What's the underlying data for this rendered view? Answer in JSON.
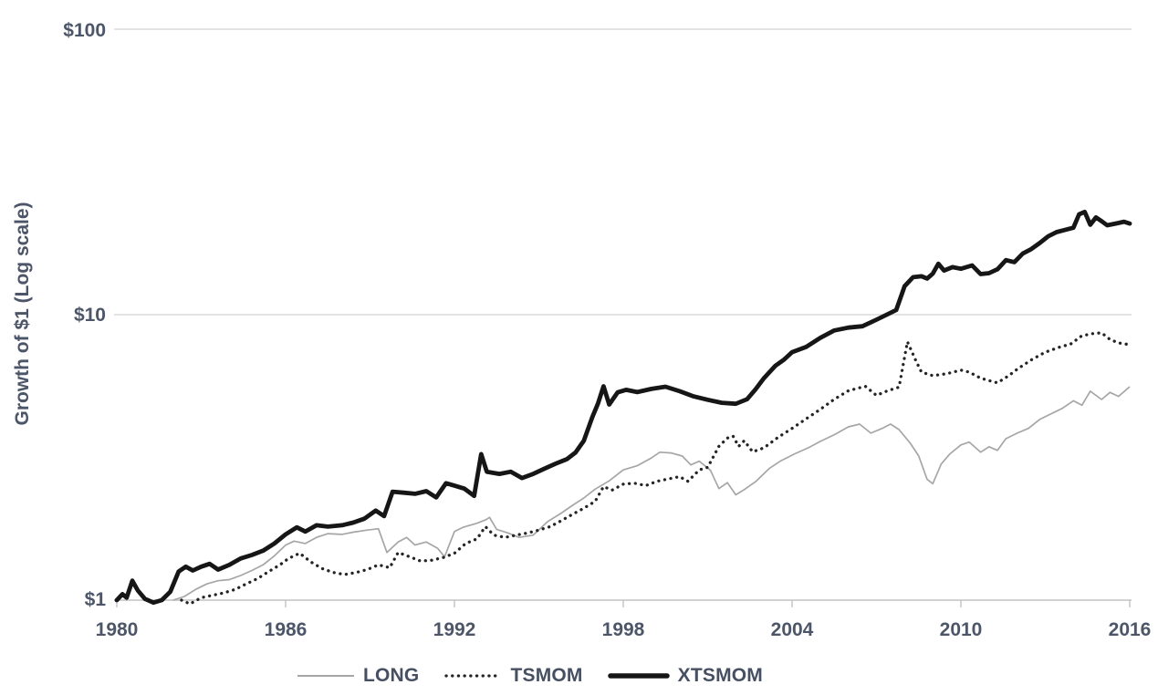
{
  "chart_data": {
    "type": "line",
    "title": "",
    "xlabel": "",
    "ylabel": "Growth of $1 (Log scale)",
    "x_axis": {
      "min": 1980,
      "max": 2016,
      "ticks": [
        1980,
        1986,
        1992,
        1998,
        2004,
        2010,
        2016
      ],
      "tick_labels": [
        "1980",
        "1986",
        "1992",
        "1998",
        "2004",
        "2010",
        "2016"
      ]
    },
    "y_axis": {
      "scale": "log10",
      "min": 1,
      "max": 100,
      "ticks": [
        1,
        10,
        100
      ],
      "tick_labels": [
        "$1",
        "$10",
        "$100"
      ]
    },
    "grid": {
      "horizontal": true,
      "vertical": false,
      "color": "#dadada"
    },
    "axis_color": "#c2c2c2",
    "text_color": "#4d5668",
    "legend": {
      "position": "bottom"
    },
    "series": [
      {
        "name": "LONG",
        "line": "thin",
        "color": "#a6a6a6",
        "points": [
          [
            1982.0,
            1.0
          ],
          [
            1982.4,
            1.03
          ],
          [
            1982.8,
            1.09
          ],
          [
            1983.2,
            1.14
          ],
          [
            1983.6,
            1.17
          ],
          [
            1984.0,
            1.18
          ],
          [
            1984.4,
            1.22
          ],
          [
            1984.8,
            1.27
          ],
          [
            1985.2,
            1.33
          ],
          [
            1985.6,
            1.43
          ],
          [
            1986.0,
            1.56
          ],
          [
            1986.3,
            1.61
          ],
          [
            1986.7,
            1.58
          ],
          [
            1987.1,
            1.66
          ],
          [
            1987.5,
            1.71
          ],
          [
            1988.0,
            1.7
          ],
          [
            1988.4,
            1.73
          ],
          [
            1988.9,
            1.76
          ],
          [
            1989.3,
            1.78
          ],
          [
            1989.6,
            1.47
          ],
          [
            1990.0,
            1.6
          ],
          [
            1990.3,
            1.66
          ],
          [
            1990.6,
            1.56
          ],
          [
            1991.0,
            1.6
          ],
          [
            1991.4,
            1.52
          ],
          [
            1991.65,
            1.42
          ],
          [
            1992.0,
            1.74
          ],
          [
            1992.3,
            1.8
          ],
          [
            1992.8,
            1.86
          ],
          [
            1993.1,
            1.91
          ],
          [
            1993.25,
            1.95
          ],
          [
            1993.5,
            1.77
          ],
          [
            1993.9,
            1.72
          ],
          [
            1994.3,
            1.66
          ],
          [
            1994.8,
            1.69
          ],
          [
            1995.3,
            1.88
          ],
          [
            1995.8,
            2.02
          ],
          [
            1996.2,
            2.15
          ],
          [
            1996.6,
            2.28
          ],
          [
            1997.0,
            2.45
          ],
          [
            1997.5,
            2.62
          ],
          [
            1998.0,
            2.86
          ],
          [
            1998.5,
            2.96
          ],
          [
            1999.0,
            3.15
          ],
          [
            1999.3,
            3.3
          ],
          [
            1999.7,
            3.28
          ],
          [
            2000.1,
            3.2
          ],
          [
            2000.4,
            2.98
          ],
          [
            2000.7,
            3.07
          ],
          [
            2001.1,
            2.85
          ],
          [
            2001.4,
            2.46
          ],
          [
            2001.7,
            2.58
          ],
          [
            2002.0,
            2.34
          ],
          [
            2002.3,
            2.44
          ],
          [
            2002.7,
            2.6
          ],
          [
            2003.2,
            2.9
          ],
          [
            2003.6,
            3.08
          ],
          [
            2004.1,
            3.26
          ],
          [
            2004.6,
            3.43
          ],
          [
            2005.0,
            3.6
          ],
          [
            2005.5,
            3.8
          ],
          [
            2006.0,
            4.05
          ],
          [
            2006.4,
            4.14
          ],
          [
            2006.8,
            3.85
          ],
          [
            2007.2,
            4.0
          ],
          [
            2007.5,
            4.14
          ],
          [
            2007.8,
            3.96
          ],
          [
            2008.2,
            3.55
          ],
          [
            2008.5,
            3.2
          ],
          [
            2008.8,
            2.65
          ],
          [
            2009.0,
            2.56
          ],
          [
            2009.3,
            3.0
          ],
          [
            2009.6,
            3.25
          ],
          [
            2010.0,
            3.5
          ],
          [
            2010.3,
            3.58
          ],
          [
            2010.7,
            3.3
          ],
          [
            2011.0,
            3.45
          ],
          [
            2011.3,
            3.35
          ],
          [
            2011.6,
            3.68
          ],
          [
            2012.0,
            3.85
          ],
          [
            2012.4,
            4.0
          ],
          [
            2012.8,
            4.3
          ],
          [
            2013.2,
            4.5
          ],
          [
            2013.6,
            4.7
          ],
          [
            2014.0,
            5.0
          ],
          [
            2014.3,
            4.82
          ],
          [
            2014.6,
            5.4
          ],
          [
            2015.0,
            5.05
          ],
          [
            2015.3,
            5.35
          ],
          [
            2015.6,
            5.18
          ],
          [
            2016.0,
            5.6
          ]
        ]
      },
      {
        "name": "TSMOM",
        "line": "dotted",
        "color": "#242424",
        "points": [
          [
            1982.3,
            1.0
          ],
          [
            1982.6,
            0.97
          ],
          [
            1983.0,
            1.02
          ],
          [
            1983.4,
            1.04
          ],
          [
            1983.8,
            1.06
          ],
          [
            1984.2,
            1.09
          ],
          [
            1984.6,
            1.14
          ],
          [
            1985.0,
            1.19
          ],
          [
            1985.4,
            1.26
          ],
          [
            1985.8,
            1.33
          ],
          [
            1986.1,
            1.4
          ],
          [
            1986.5,
            1.46
          ],
          [
            1986.9,
            1.36
          ],
          [
            1987.3,
            1.29
          ],
          [
            1987.7,
            1.25
          ],
          [
            1988.1,
            1.23
          ],
          [
            1988.5,
            1.25
          ],
          [
            1988.9,
            1.28
          ],
          [
            1989.3,
            1.33
          ],
          [
            1989.7,
            1.3
          ],
          [
            1990.0,
            1.47
          ],
          [
            1990.4,
            1.42
          ],
          [
            1990.8,
            1.37
          ],
          [
            1991.2,
            1.38
          ],
          [
            1991.6,
            1.41
          ],
          [
            1992.0,
            1.46
          ],
          [
            1992.4,
            1.58
          ],
          [
            1992.8,
            1.64
          ],
          [
            1993.1,
            1.81
          ],
          [
            1993.4,
            1.69
          ],
          [
            1993.8,
            1.66
          ],
          [
            1994.2,
            1.69
          ],
          [
            1994.6,
            1.72
          ],
          [
            1995.0,
            1.76
          ],
          [
            1995.4,
            1.81
          ],
          [
            1995.8,
            1.9
          ],
          [
            1996.2,
            2.0
          ],
          [
            1996.6,
            2.1
          ],
          [
            1997.0,
            2.22
          ],
          [
            1997.3,
            2.5
          ],
          [
            1997.6,
            2.43
          ],
          [
            1998.0,
            2.55
          ],
          [
            1998.4,
            2.57
          ],
          [
            1998.8,
            2.52
          ],
          [
            1999.2,
            2.61
          ],
          [
            1999.6,
            2.66
          ],
          [
            2000.0,
            2.71
          ],
          [
            2000.3,
            2.61
          ],
          [
            2000.7,
            2.86
          ],
          [
            2001.0,
            2.92
          ],
          [
            2001.4,
            3.46
          ],
          [
            2001.7,
            3.7
          ],
          [
            2001.9,
            3.76
          ],
          [
            2002.1,
            3.46
          ],
          [
            2002.3,
            3.62
          ],
          [
            2002.6,
            3.31
          ],
          [
            2003.0,
            3.42
          ],
          [
            2003.5,
            3.72
          ],
          [
            2004.0,
            4.0
          ],
          [
            2004.5,
            4.32
          ],
          [
            2005.0,
            4.66
          ],
          [
            2005.5,
            5.06
          ],
          [
            2006.0,
            5.42
          ],
          [
            2006.6,
            5.62
          ],
          [
            2007.0,
            5.22
          ],
          [
            2007.4,
            5.42
          ],
          [
            2007.8,
            5.58
          ],
          [
            2008.1,
            8.05
          ],
          [
            2008.4,
            6.9
          ],
          [
            2008.6,
            6.3
          ],
          [
            2009.0,
            6.12
          ],
          [
            2009.5,
            6.22
          ],
          [
            2010.0,
            6.4
          ],
          [
            2010.3,
            6.3
          ],
          [
            2010.7,
            6.0
          ],
          [
            2011.0,
            5.88
          ],
          [
            2011.3,
            5.78
          ],
          [
            2011.7,
            6.12
          ],
          [
            2012.0,
            6.45
          ],
          [
            2012.5,
            6.95
          ],
          [
            2013.0,
            7.4
          ],
          [
            2013.5,
            7.7
          ],
          [
            2013.9,
            7.9
          ],
          [
            2014.3,
            8.45
          ],
          [
            2014.7,
            8.6
          ],
          [
            2015.0,
            8.65
          ],
          [
            2015.3,
            8.2
          ],
          [
            2015.6,
            7.97
          ],
          [
            2016.0,
            7.86
          ]
        ]
      },
      {
        "name": "XTSMOM",
        "line": "thick",
        "color": "#161616",
        "points": [
          [
            1980.0,
            1.0
          ],
          [
            1980.2,
            1.05
          ],
          [
            1980.35,
            1.02
          ],
          [
            1980.55,
            1.17
          ],
          [
            1980.75,
            1.08
          ],
          [
            1981.0,
            1.01
          ],
          [
            1981.3,
            0.98
          ],
          [
            1981.6,
            1.0
          ],
          [
            1981.9,
            1.07
          ],
          [
            1982.2,
            1.26
          ],
          [
            1982.45,
            1.31
          ],
          [
            1982.7,
            1.27
          ],
          [
            1983.0,
            1.31
          ],
          [
            1983.3,
            1.34
          ],
          [
            1983.6,
            1.28
          ],
          [
            1984.0,
            1.33
          ],
          [
            1984.4,
            1.4
          ],
          [
            1984.8,
            1.44
          ],
          [
            1985.2,
            1.49
          ],
          [
            1985.6,
            1.58
          ],
          [
            1986.0,
            1.7
          ],
          [
            1986.4,
            1.8
          ],
          [
            1986.7,
            1.74
          ],
          [
            1987.1,
            1.83
          ],
          [
            1987.5,
            1.81
          ],
          [
            1988.0,
            1.83
          ],
          [
            1988.4,
            1.87
          ],
          [
            1988.8,
            1.93
          ],
          [
            1989.2,
            2.06
          ],
          [
            1989.5,
            1.97
          ],
          [
            1989.8,
            2.4
          ],
          [
            1990.2,
            2.38
          ],
          [
            1990.6,
            2.36
          ],
          [
            1991.0,
            2.41
          ],
          [
            1991.35,
            2.29
          ],
          [
            1991.7,
            2.57
          ],
          [
            1992.0,
            2.52
          ],
          [
            1992.35,
            2.46
          ],
          [
            1992.7,
            2.32
          ],
          [
            1992.95,
            3.25
          ],
          [
            1993.15,
            2.82
          ],
          [
            1993.6,
            2.77
          ],
          [
            1994.0,
            2.82
          ],
          [
            1994.4,
            2.68
          ],
          [
            1994.8,
            2.77
          ],
          [
            1995.2,
            2.89
          ],
          [
            1995.6,
            3.01
          ],
          [
            1996.0,
            3.12
          ],
          [
            1996.3,
            3.29
          ],
          [
            1996.6,
            3.62
          ],
          [
            1996.9,
            4.38
          ],
          [
            1997.1,
            4.88
          ],
          [
            1997.3,
            5.62
          ],
          [
            1997.5,
            4.85
          ],
          [
            1997.8,
            5.35
          ],
          [
            1998.1,
            5.46
          ],
          [
            1998.5,
            5.36
          ],
          [
            1999.0,
            5.5
          ],
          [
            1999.5,
            5.6
          ],
          [
            2000.0,
            5.4
          ],
          [
            2000.5,
            5.18
          ],
          [
            2001.0,
            5.04
          ],
          [
            2001.5,
            4.92
          ],
          [
            2002.0,
            4.88
          ],
          [
            2002.4,
            5.06
          ],
          [
            2002.7,
            5.48
          ],
          [
            2003.0,
            6.0
          ],
          [
            2003.4,
            6.62
          ],
          [
            2003.7,
            6.95
          ],
          [
            2004.0,
            7.4
          ],
          [
            2004.5,
            7.72
          ],
          [
            2005.0,
            8.3
          ],
          [
            2005.5,
            8.82
          ],
          [
            2006.0,
            9.02
          ],
          [
            2006.5,
            9.12
          ],
          [
            2007.0,
            9.62
          ],
          [
            2007.4,
            10.05
          ],
          [
            2007.7,
            10.4
          ],
          [
            2008.0,
            12.6
          ],
          [
            2008.3,
            13.55
          ],
          [
            2008.6,
            13.65
          ],
          [
            2008.8,
            13.4
          ],
          [
            2009.0,
            13.95
          ],
          [
            2009.2,
            15.1
          ],
          [
            2009.4,
            14.3
          ],
          [
            2009.7,
            14.7
          ],
          [
            2010.0,
            14.5
          ],
          [
            2010.4,
            14.9
          ],
          [
            2010.7,
            13.9
          ],
          [
            2011.0,
            14.0
          ],
          [
            2011.3,
            14.45
          ],
          [
            2011.6,
            15.55
          ],
          [
            2011.9,
            15.3
          ],
          [
            2012.2,
            16.4
          ],
          [
            2012.5,
            17.0
          ],
          [
            2012.8,
            17.85
          ],
          [
            2013.1,
            18.85
          ],
          [
            2013.4,
            19.5
          ],
          [
            2013.7,
            19.85
          ],
          [
            2014.0,
            20.2
          ],
          [
            2014.2,
            22.5
          ],
          [
            2014.4,
            22.95
          ],
          [
            2014.6,
            20.7
          ],
          [
            2014.8,
            21.95
          ],
          [
            2015.0,
            21.3
          ],
          [
            2015.2,
            20.6
          ],
          [
            2015.5,
            20.9
          ],
          [
            2015.8,
            21.2
          ],
          [
            2016.0,
            20.9
          ]
        ]
      }
    ]
  }
}
